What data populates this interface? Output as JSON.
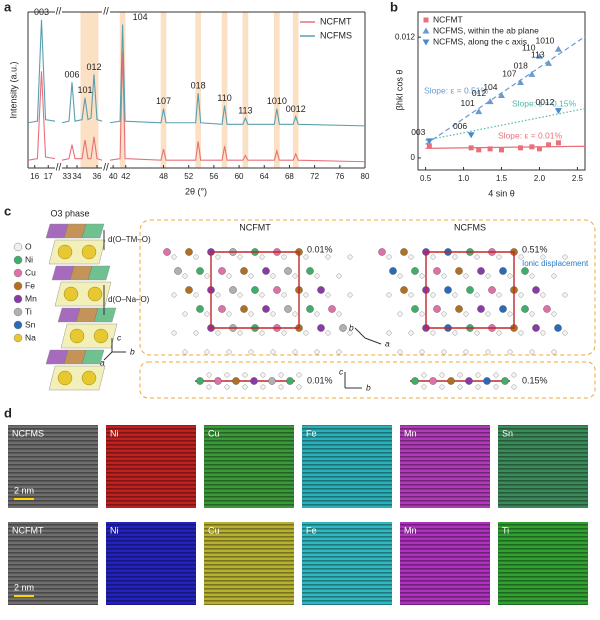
{
  "panels": [
    "a",
    "b",
    "c",
    "d"
  ],
  "chart_data": [
    {
      "type": "line",
      "x_label": "2θ (°)",
      "y_label": "Intensity (a.u.)",
      "x": [
        15.5,
        16.2,
        16.5,
        16.8,
        17.5,
        32.5,
        33.2,
        33.5,
        33.8,
        34.5,
        34.8,
        35.1,
        35.4,
        35.7,
        36.0,
        36.5,
        39.5,
        41.1,
        41.5,
        41.9,
        47.6,
        48.0,
        48.4,
        53.1,
        53.5,
        53.9,
        57.3,
        57.7,
        58.1,
        60.6,
        61.0,
        61.4,
        65.6,
        66.0,
        66.4,
        68.6,
        69.0,
        69.4,
        80
      ],
      "series": [
        {
          "name": "NCFMT",
          "color": "#e8707a",
          "values": [
            5,
            6,
            62,
            7,
            6,
            5,
            6,
            15,
            6,
            6,
            18,
            6,
            6,
            20,
            6,
            5,
            5,
            6,
            75,
            6,
            5,
            12,
            5,
            5,
            17,
            5,
            5,
            14,
            5,
            5,
            8,
            5,
            5,
            11,
            5,
            5,
            9,
            5,
            4
          ]
        },
        {
          "name": "NCFMS",
          "color": "#5a9fb0",
          "values": [
            29,
            30,
            95,
            31,
            30,
            29,
            30,
            55,
            30,
            31,
            45,
            31,
            32,
            60,
            31,
            30,
            29,
            30,
            92,
            30,
            29,
            38,
            29,
            29,
            48,
            29,
            28,
            40,
            28,
            28,
            32,
            28,
            28,
            38,
            28,
            28,
            33,
            28,
            27
          ]
        }
      ],
      "xlim": [
        [
          15.5,
          17.5
        ],
        [
          32.5,
          36.5
        ],
        [
          39.5,
          80
        ]
      ],
      "xticks": [
        16,
        17,
        33,
        34,
        36,
        40,
        42,
        48,
        52,
        56,
        60,
        64,
        68,
        72,
        76,
        80
      ],
      "ylim": [
        0,
        100
      ],
      "annotations": [
        {
          "text": "003",
          "x": 16.5,
          "band": false
        },
        {
          "text": "006",
          "x": 33.5,
          "band": false
        },
        {
          "text": "101",
          "x": 34.8,
          "band": true
        },
        {
          "text": "012",
          "x": 35.7,
          "band": true
        },
        {
          "text": "104",
          "x": 41.5,
          "band": true
        },
        {
          "text": "107",
          "x": 48.0,
          "band": true
        },
        {
          "text": "018",
          "x": 53.5,
          "band": true
        },
        {
          "text": "110",
          "x": 57.7,
          "band": true
        },
        {
          "text": "113",
          "x": 61.0,
          "band": true
        },
        {
          "text": "1010",
          "x": 66.0,
          "band": true
        },
        {
          "text": "0012",
          "x": 69.0,
          "band": true
        }
      ],
      "band_color": "#fbe0c4",
      "legend": "upper right"
    },
    {
      "type": "scatter",
      "x_label": "4 sin θ",
      "y_label": "βhkl cos θ",
      "xlim": [
        0.4,
        2.6
      ],
      "xticks": [
        0.5,
        {
          "value": 1,
          "label": "1.0"
        },
        1.5,
        {
          "value": 2,
          "label": "2.0"
        },
        2.5
      ],
      "ylim": [
        -0.0012,
        0.0145
      ],
      "yticks": [
        0,
        0.012
      ],
      "series": [
        {
          "name": "NCFMT",
          "color": "#e8707a",
          "marker": "square",
          "x": [
            0.55,
            1.1,
            1.2,
            1.35,
            1.5,
            1.75,
            1.9,
            2.0,
            2.12,
            2.25
          ],
          "values": [
            0.0012,
            0.001,
            0.0008,
            0.0009,
            0.0008,
            0.001,
            0.0011,
            0.0009,
            0.0013,
            0.0015
          ]
        },
        {
          "name": "NCFMS, within the ab plane",
          "color": "#6a9ad0",
          "marker": "triangle-up",
          "x": [
            1.2,
            1.35,
            1.5,
            1.75,
            1.9,
            2.0,
            2.12,
            2.25
          ],
          "values": [
            0.0046,
            0.0056,
            0.0062,
            0.0075,
            0.0083,
            0.0101,
            0.0094,
            0.0108
          ],
          "labels": [
            "101",
            "012",
            "104",
            "107",
            "018",
            "110",
            "113",
            "1010"
          ]
        },
        {
          "name": "NCFMS, along the c axis",
          "color": "#4a88c8",
          "marker": "triangle-down",
          "x": [
            0.55,
            1.1,
            2.25
          ],
          "values": [
            0.0017,
            0.0023,
            0.0047
          ],
          "labels": [
            "003",
            "006",
            "0012"
          ]
        }
      ],
      "fits": [
        {
          "label": "Slope: ε = 0.51%",
          "slope": 0.0051,
          "intercept": -0.0012,
          "color": "#6a9ad0",
          "style": "dashed"
        },
        {
          "label": "Slope: ε = 0.15%",
          "slope": 0.0015,
          "intercept": 0.001,
          "color": "#4fb8ac",
          "style": "dotted"
        },
        {
          "label": "Slope: ε = 0.01%",
          "slope": 0.0001,
          "intercept": 0.0009,
          "color": "#e8707a",
          "style": "solid"
        }
      ],
      "legend": "upper left"
    }
  ],
  "diagram": {
    "title": "O3 phase",
    "spacings": [
      "d(O–TM–O)",
      "d(O–Na–O)"
    ],
    "atoms": [
      {
        "name": "O",
        "color": "#eeeeee"
      },
      {
        "name": "Ni",
        "color": "#3fae6a"
      },
      {
        "name": "Cu",
        "color": "#e070a8"
      },
      {
        "name": "Fe",
        "color": "#b07020"
      },
      {
        "name": "Mn",
        "color": "#8a3aa8"
      },
      {
        "name": "Ti",
        "color": "#b0b0b0"
      },
      {
        "name": "Sn",
        "color": "#2a6ab8"
      },
      {
        "name": "Na",
        "color": "#e8c830"
      }
    ],
    "structure_axes": [
      "c",
      "b",
      "a"
    ],
    "views": [
      {
        "name": "NCFMT",
        "inplane": "0.01%",
        "chain": "0.01%"
      },
      {
        "name": "NCFMS",
        "inplane": "0.51%",
        "chain": "0.15%",
        "note": "Ionic displacement"
      }
    ],
    "inplane_axes": [
      "b",
      "a"
    ],
    "chain_axes": [
      "c",
      "b"
    ]
  },
  "maps": {
    "scale_bar": "2 nm",
    "rows": [
      {
        "tiles": [
          {
            "label": "NCFMS",
            "color": "#6e6e6e"
          },
          {
            "label": "Ni",
            "color": "#c0201e"
          },
          {
            "label": "Cu",
            "color": "#3a9a3a"
          },
          {
            "label": "Fe",
            "color": "#2ab0b8"
          },
          {
            "label": "Mn",
            "color": "#b03ab8"
          },
          {
            "label": "Sn",
            "color": "#3a8a5a"
          }
        ]
      },
      {
        "tiles": [
          {
            "label": "NCFMT",
            "color": "#6e6e6e"
          },
          {
            "label": "Ni",
            "color": "#2222c0"
          },
          {
            "label": "Cu",
            "color": "#b8b030"
          },
          {
            "label": "Fe",
            "color": "#30b8c0"
          },
          {
            "label": "Mn",
            "color": "#b030c0"
          },
          {
            "label": "Ti",
            "color": "#30a030"
          }
        ]
      }
    ]
  }
}
